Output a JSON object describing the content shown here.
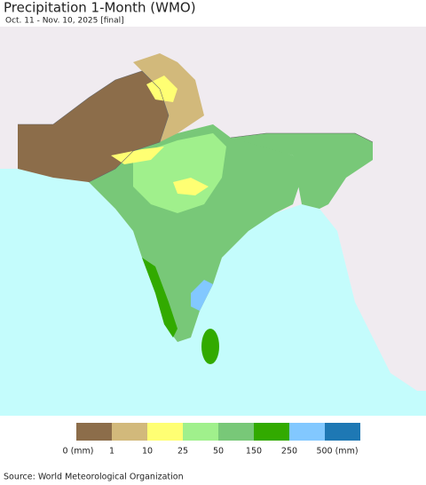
{
  "header": {
    "title": "Precipitation 1-Month (WMO)",
    "subtitle": "Oct. 11 - Nov. 10, 2025 [final]"
  },
  "legend": {
    "colors": [
      "#8c6d4a",
      "#d2b97b",
      "#ffff73",
      "#a0f08c",
      "#78c878",
      "#32aa00",
      "#82c8ff",
      "#1e78b4"
    ],
    "labels": [
      "0 (mm)",
      "1",
      "10",
      "25",
      "50",
      "150",
      "250",
      "500 (mm)"
    ]
  },
  "footer": {
    "source": "Source: World Meteorological Organization"
  }
}
